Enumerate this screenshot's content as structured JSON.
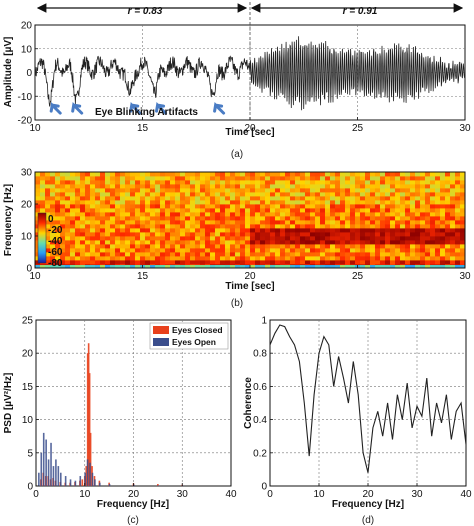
{
  "chart_data": [
    {
      "id": "a",
      "type": "line",
      "caption": "(a)",
      "xlabel": "Time [sec]",
      "ylabel": "Amplitude [µV]",
      "xlim": [
        10,
        30
      ],
      "ylim": [
        -20,
        20
      ],
      "xticks": [
        10,
        15,
        20,
        25,
        30
      ],
      "yticks": [
        -20,
        -10,
        0,
        10,
        20
      ],
      "grid": true,
      "annotations": {
        "r1": "r = 0.83",
        "r2": "r = 0.91",
        "artifact_label": "Eye Blinking Artifacts",
        "split_x": 20,
        "artifact_times": [
          10.8,
          11.8,
          14.5,
          15.7,
          18.4
        ]
      },
      "series": [
        {
          "eyes_closed_from": 20,
          "amplitude_before": 5,
          "amplitude_after": 15,
          "blink_times": [
            10.7,
            11.9,
            14.4,
            15.6,
            18.3
          ],
          "blink_depth": -12
        }
      ]
    },
    {
      "id": "b",
      "type": "heatmap",
      "caption": "(b)",
      "xlabel": "Time [sec]",
      "ylabel": "Frequency [Hz]",
      "xlim": [
        10,
        30
      ],
      "ylim": [
        0,
        30
      ],
      "xticks": [
        10,
        15,
        20,
        25,
        30
      ],
      "yticks": [
        0,
        10,
        20,
        30
      ],
      "colorbar_ticks": [
        "0",
        "-20",
        "-40",
        "-60",
        "-80"
      ],
      "colorscale": [
        "#8b0000",
        "#ff2a00",
        "#ffd400",
        "#66ddaa",
        "#2a9df4",
        "#1a1aa0"
      ],
      "alpha_band_hz": 10,
      "alpha_from_time": 20
    },
    {
      "id": "c",
      "type": "bar",
      "caption": "(c)",
      "xlabel": "Frequency [Hz]",
      "ylabel": "PSD [µV²/Hz]",
      "xlim": [
        0,
        40
      ],
      "ylim": [
        0,
        25
      ],
      "xticks": [
        0,
        10,
        20,
        30,
        40
      ],
      "yticks": [
        0,
        5,
        10,
        15,
        20,
        25
      ],
      "grid": true,
      "legend_position": "top-right",
      "series": [
        {
          "name": "Eyes Closed",
          "color": "#e8401c",
          "x": [
            1,
            1.5,
            2,
            2.5,
            3,
            3.5,
            4,
            5,
            6,
            7,
            8,
            9,
            9.5,
            10,
            10.3,
            10.6,
            10.8,
            11,
            11.2,
            11.5,
            12,
            13,
            15,
            20,
            25,
            30
          ],
          "values": [
            1,
            2,
            1.5,
            1.5,
            1,
            1.2,
            0.8,
            0.6,
            0.5,
            0.5,
            0.6,
            0.8,
            1,
            1.5,
            3,
            20,
            21.5,
            17,
            8,
            3,
            1.5,
            0.8,
            0.5,
            0.4,
            0.3,
            0.2
          ]
        },
        {
          "name": "Eyes Open",
          "color": "#3a4d8c",
          "x": [
            0.5,
            1,
            1.5,
            2,
            2.5,
            3,
            3.5,
            4,
            4.5,
            5,
            6,
            7,
            8,
            9,
            10,
            10.5,
            11,
            11.5,
            12,
            13,
            15,
            20,
            25,
            30
          ],
          "values": [
            2,
            5,
            8,
            7,
            4,
            6.5,
            3,
            4,
            3,
            2,
            1.5,
            1,
            0.8,
            1.5,
            2,
            4,
            3.5,
            2,
            1,
            0.5,
            0.3,
            0.2,
            0.1,
            0.1
          ]
        }
      ]
    },
    {
      "id": "d",
      "type": "line",
      "caption": "(d)",
      "xlabel": "Frequency [Hz]",
      "ylabel": "Coherence",
      "xlim": [
        0,
        40
      ],
      "ylim": [
        0,
        1
      ],
      "xticks": [
        0,
        10,
        20,
        30,
        40
      ],
      "yticks": [
        0,
        0.2,
        0.4,
        0.6,
        0.8,
        1
      ],
      "ytick_labels": [
        "0",
        "0.2",
        "0.4",
        "0.6",
        "0.8",
        "1"
      ],
      "grid": true,
      "series": [
        {
          "x": [
            0,
            1,
            2,
            3,
            4,
            5,
            6,
            7,
            8,
            9,
            10,
            11,
            12,
            13,
            14,
            15,
            16,
            17,
            18,
            19,
            20,
            21,
            22,
            23,
            24,
            25,
            26,
            27,
            28,
            29,
            30,
            31,
            32,
            33,
            34,
            35,
            36,
            37,
            38,
            39,
            40
          ],
          "values": [
            0.85,
            0.92,
            0.97,
            0.96,
            0.9,
            0.85,
            0.75,
            0.5,
            0.18,
            0.55,
            0.8,
            0.9,
            0.85,
            0.6,
            0.78,
            0.65,
            0.5,
            0.75,
            0.55,
            0.2,
            0.08,
            0.35,
            0.45,
            0.3,
            0.5,
            0.28,
            0.55,
            0.4,
            0.62,
            0.35,
            0.48,
            0.42,
            0.65,
            0.3,
            0.5,
            0.38,
            0.55,
            0.28,
            0.45,
            0.5,
            0.25
          ]
        }
      ]
    }
  ]
}
